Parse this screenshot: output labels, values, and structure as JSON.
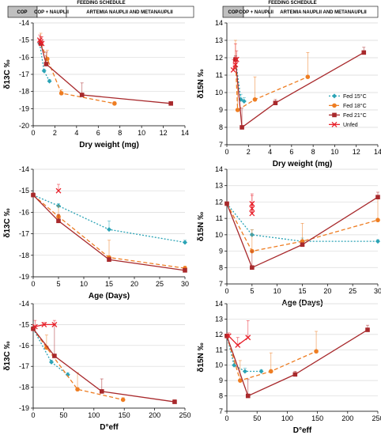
{
  "schedule": {
    "title": "FEEDING SCHEDULE",
    "segments": [
      {
        "label": "COP",
        "shaded": true
      },
      {
        "label": "COP + NAUPLII",
        "shaded": false
      },
      {
        "label": "ARTEMIA NAUPLII AND METANAUPLII",
        "shaded": false
      }
    ]
  },
  "series_styles": [
    {
      "name": "Fed 15°C",
      "color": "#2aa3b5",
      "marker": "diamond",
      "dash": "2,2"
    },
    {
      "name": "Fed 18°C",
      "color": "#ee7d22",
      "marker": "circle",
      "dash": "5,3"
    },
    {
      "name": "Fed 21°C",
      "color": "#a8292c",
      "marker": "square",
      "dash": ""
    },
    {
      "name": "Unfed",
      "color": "#e8202a",
      "marker": "cross",
      "dash": ""
    }
  ],
  "chart_data": [
    {
      "type": "line",
      "panel": "carbon-dry-weight",
      "xlabel": "Dry weight (mg)",
      "ylabel": "δ13C ‰",
      "xlim": [
        0,
        14
      ],
      "ylim": [
        -20,
        -14
      ],
      "xticks": [
        0,
        2,
        4,
        6,
        8,
        10,
        12,
        14
      ],
      "yticks": [
        -20,
        -19,
        -18,
        -17,
        -16,
        -15,
        -14
      ],
      "series": [
        {
          "name": "Fed 15°C",
          "x": [
            0.6,
            1.0,
            1.5
          ],
          "y": [
            -15.2,
            -16.8,
            -17.4
          ],
          "err": [
            0.1,
            0.1,
            0.1
          ]
        },
        {
          "name": "Fed 18°C",
          "x": [
            0.7,
            1.3,
            2.6,
            7.5
          ],
          "y": [
            -15.2,
            -16.1,
            -18.1,
            -18.7
          ],
          "err": [
            0.6,
            0.5,
            0.2,
            0.1
          ]
        },
        {
          "name": "Fed 21°C",
          "x": [
            0.7,
            1.2,
            4.5,
            12.7
          ],
          "y": [
            -15.2,
            -16.4,
            -18.2,
            -18.7
          ],
          "err": [
            0.4,
            0.7,
            0.7,
            0.1
          ]
        },
        {
          "name": "Unfed",
          "x": [
            0.6,
            0.7,
            0.8
          ],
          "y": [
            -15.0,
            -15.1,
            -15.2
          ],
          "err": [
            0.3,
            0.3,
            0.4
          ]
        }
      ]
    },
    {
      "type": "line",
      "panel": "nitrogen-dry-weight",
      "xlabel": "Dry weight (mg)",
      "ylabel": "δ15N ‰",
      "xlim": [
        0,
        14
      ],
      "ylim": [
        7,
        14
      ],
      "xticks": [
        0,
        2,
        4,
        6,
        8,
        10,
        12,
        14
      ],
      "yticks": [
        7,
        8,
        9,
        10,
        11,
        12,
        13,
        14
      ],
      "legend": "right",
      "series": [
        {
          "name": "Fed 15°C",
          "x": [
            0.8,
            1.3,
            1.6
          ],
          "y": [
            11.9,
            9.6,
            9.5
          ],
          "err": [
            0.2,
            0.3,
            0.2
          ]
        },
        {
          "name": "Fed 18°C",
          "x": [
            0.8,
            1.0,
            2.6,
            7.5
          ],
          "y": [
            11.9,
            9.0,
            9.6,
            10.9
          ],
          "err": [
            1.1,
            1.5,
            1.3,
            1.4
          ]
        },
        {
          "name": "Fed 21°C",
          "x": [
            0.8,
            1.4,
            4.5,
            12.7
          ],
          "y": [
            11.9,
            8.0,
            9.4,
            12.3
          ],
          "err": [
            0.2,
            1.1,
            0.2,
            0.3
          ]
        },
        {
          "name": "Unfed",
          "x": [
            0.6,
            0.8,
            0.9
          ],
          "y": [
            11.3,
            11.6,
            11.9
          ],
          "err": [
            0.6,
            1.2,
            0.5
          ]
        }
      ]
    },
    {
      "type": "line",
      "panel": "carbon-age",
      "xlabel": "Age (Days)",
      "ylabel": "δ13C ‰",
      "xlim": [
        0,
        30
      ],
      "ylim": [
        -19,
        -14
      ],
      "xticks": [
        0,
        5,
        10,
        15,
        20,
        25,
        30
      ],
      "yticks": [
        -19,
        -18,
        -17,
        -16,
        -15,
        -14
      ],
      "series": [
        {
          "name": "Fed 15°C",
          "x": [
            0,
            5,
            15,
            30
          ],
          "y": [
            -15.2,
            -15.7,
            -16.8,
            -17.4
          ],
          "err": [
            0.1,
            0.1,
            0.4,
            0.1
          ]
        },
        {
          "name": "Fed 18°C",
          "x": [
            0,
            5,
            15,
            30
          ],
          "y": [
            -15.2,
            -16.2,
            -18.1,
            -18.6
          ],
          "err": [
            0.1,
            0.5,
            0.8,
            0.1
          ]
        },
        {
          "name": "Fed 21°C",
          "x": [
            0,
            5,
            15,
            30
          ],
          "y": [
            -15.2,
            -16.4,
            -18.2,
            -18.7
          ],
          "err": [
            0.1,
            0.3,
            0.1,
            0.1
          ]
        },
        {
          "name": "Unfed",
          "x": [
            5
          ],
          "y": [
            -15.0
          ],
          "err": [
            0.3
          ]
        }
      ]
    },
    {
      "type": "line",
      "panel": "nitrogen-age",
      "xlabel": "Age (Days)",
      "ylabel": "δ15N ‰",
      "xlim": [
        0,
        30
      ],
      "ylim": [
        7,
        14
      ],
      "xticks": [
        0,
        5,
        10,
        15,
        20,
        25,
        30
      ],
      "yticks": [
        7,
        8,
        9,
        10,
        11,
        12,
        13,
        14
      ],
      "series": [
        {
          "name": "Fed 15°C",
          "x": [
            0,
            5,
            15,
            30
          ],
          "y": [
            11.9,
            10.0,
            9.6,
            9.6
          ],
          "err": [
            0.1,
            0.3,
            0.2,
            0.1
          ]
        },
        {
          "name": "Fed 18°C",
          "x": [
            0,
            5,
            15,
            30
          ],
          "y": [
            11.9,
            9.0,
            9.6,
            10.9
          ],
          "err": [
            0.1,
            1.3,
            1.1,
            1.3
          ]
        },
        {
          "name": "Fed 21°C",
          "x": [
            0,
            5,
            15,
            30
          ],
          "y": [
            11.9,
            8.0,
            9.4,
            12.3
          ],
          "err": [
            0.1,
            1.0,
            0.1,
            0.3
          ]
        },
        {
          "name": "Unfed",
          "x": [
            5,
            5,
            5
          ],
          "y": [
            11.3,
            11.6,
            11.9
          ],
          "err": [
            0.5,
            0.8,
            0.6
          ]
        }
      ]
    },
    {
      "type": "line",
      "panel": "carbon-deff",
      "xlabel": "D°eff",
      "ylabel": "δ13C ‰",
      "xlim": [
        0,
        250
      ],
      "ylim": [
        -19,
        -14
      ],
      "xticks": [
        0,
        50,
        100,
        150,
        200,
        250
      ],
      "yticks": [
        -19,
        -18,
        -17,
        -16,
        -15,
        -14
      ],
      "series": [
        {
          "name": "Fed 15°C",
          "x": [
            0,
            30,
            57
          ],
          "y": [
            -15.2,
            -16.8,
            -17.4
          ],
          "err": [
            0.1,
            0.1,
            0.1
          ]
        },
        {
          "name": "Fed 18°C",
          "x": [
            0,
            22,
            73,
            148
          ],
          "y": [
            -15.2,
            -16.1,
            -18.1,
            -18.6
          ],
          "err": [
            0.1,
            0.6,
            0.8,
            0.1
          ]
        },
        {
          "name": "Fed 21°C",
          "x": [
            0,
            35,
            113,
            233
          ],
          "y": [
            -15.2,
            -16.5,
            -18.2,
            -18.7
          ],
          "err": [
            0.1,
            1.5,
            0.6,
            0.1
          ]
        },
        {
          "name": "Unfed",
          "x": [
            3,
            18,
            35
          ],
          "y": [
            -15.1,
            -15.0,
            -15.0
          ],
          "err": [
            0.3,
            0.1,
            0.2
          ]
        }
      ]
    },
    {
      "type": "line",
      "panel": "nitrogen-deff",
      "xlabel": "D°eff",
      "ylabel": "δ15N ‰",
      "xlim": [
        0,
        250
      ],
      "ylim": [
        7,
        14
      ],
      "xticks": [
        0,
        50,
        100,
        150,
        200,
        250
      ],
      "yticks": [
        7,
        8,
        9,
        10,
        11,
        12,
        13,
        14
      ],
      "series": [
        {
          "name": "Fed 15°C",
          "x": [
            0,
            12,
            30,
            57
          ],
          "y": [
            11.9,
            10.0,
            9.6,
            9.6
          ],
          "err": [
            0.1,
            0.3,
            0.2,
            0.1
          ]
        },
        {
          "name": "Fed 18°C",
          "x": [
            0,
            22,
            73,
            148
          ],
          "y": [
            11.9,
            9.0,
            9.6,
            10.9
          ],
          "err": [
            0.1,
            1.3,
            1.2,
            1.3
          ]
        },
        {
          "name": "Fed 21°C",
          "x": [
            0,
            35,
            113,
            233
          ],
          "y": [
            11.9,
            8.0,
            9.4,
            12.3
          ],
          "err": [
            0.1,
            1.1,
            0.2,
            0.3
          ]
        },
        {
          "name": "Unfed",
          "x": [
            3,
            18,
            35
          ],
          "y": [
            11.9,
            11.3,
            11.8
          ],
          "err": [
            0.2,
            0.5,
            1.1
          ]
        }
      ]
    }
  ]
}
